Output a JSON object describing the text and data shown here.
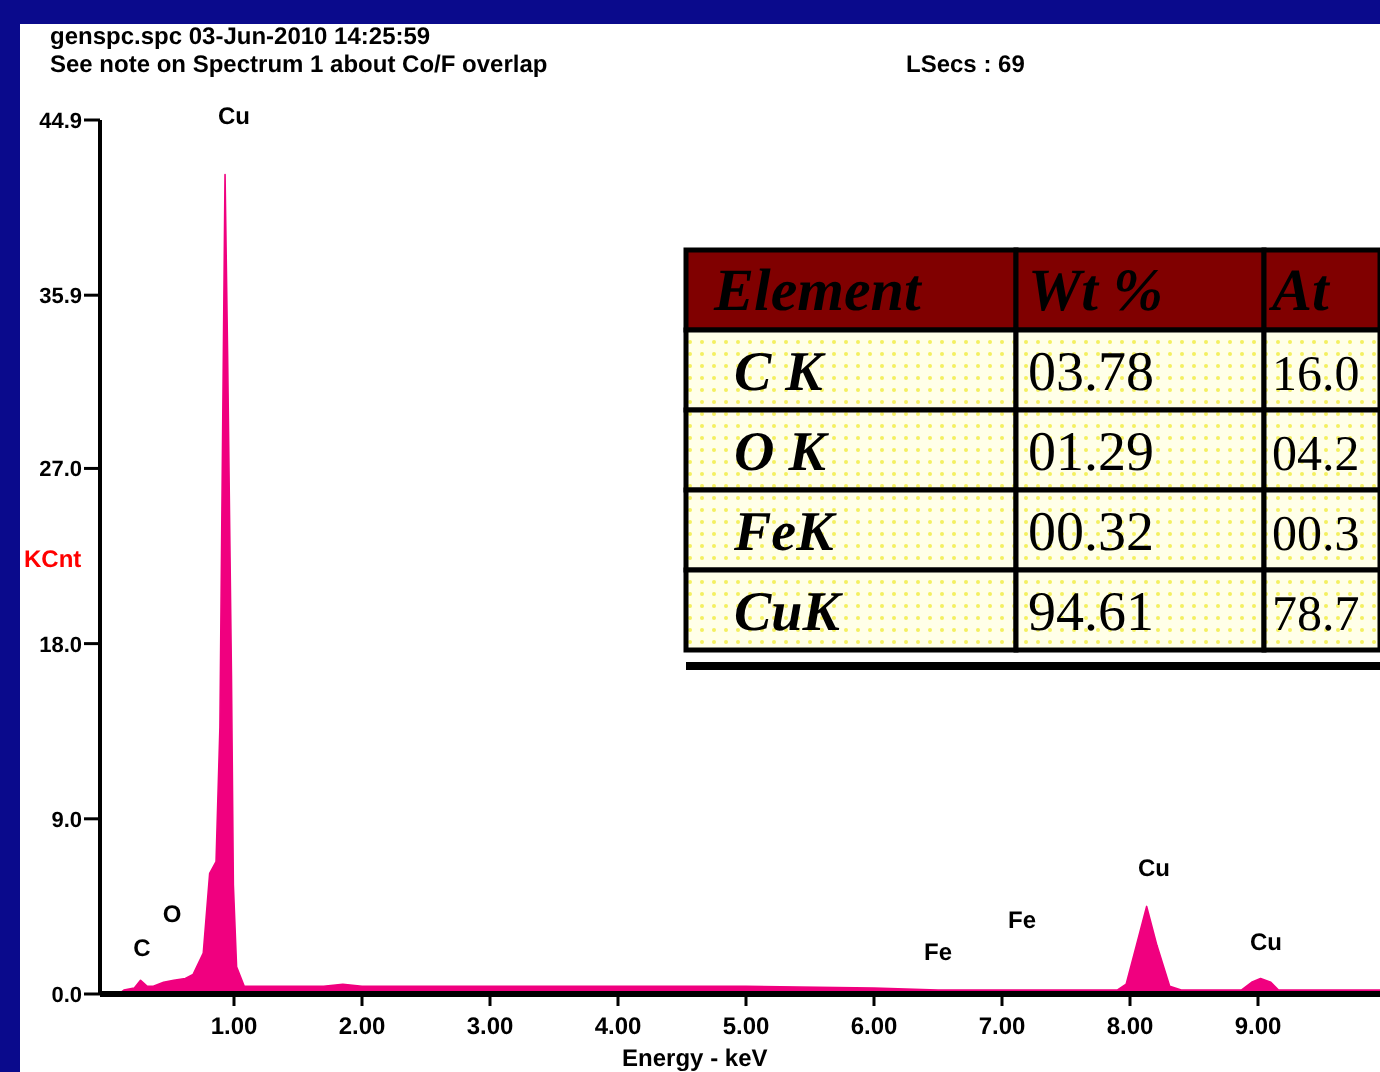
{
  "chart_data": {
    "type": "area",
    "title": "genspc.spc  03-Jun-2010 14:25:59",
    "xlabel": "Energy - keV",
    "ylabel": "KCnt",
    "annotations": [
      "See note on Spectrum 1 about Co/F overlap",
      "LSecs :  69",
      "Element",
      "Wt %",
      "At",
      "C K",
      "03.78",
      "16.0",
      "O K",
      "01.29",
      "04.2",
      "FeK",
      "00.32",
      "00.3",
      "CuK",
      "94.61",
      "78.7",
      "Cu",
      "C",
      "O",
      "Fe",
      "Fe",
      "Cu",
      "Cu"
    ],
    "series": [
      {
        "color": "#f0007f",
        "x": [
          0.1,
          0.14,
          0.22,
          0.27,
          0.32,
          0.37,
          0.45,
          0.53,
          0.62,
          0.68,
          0.76,
          0.81,
          0.86,
          0.89,
          0.93,
          0.95,
          0.98,
          0.995,
          1.02,
          1.08,
          1.3,
          1.7,
          1.85,
          2.0,
          2.5,
          3.0,
          4.0,
          5.0,
          6.0,
          6.5,
          7.0,
          7.9,
          7.97,
          8.05,
          8.13,
          8.21,
          8.31,
          8.4,
          8.87,
          8.95,
          9.02,
          9.1,
          9.16,
          9.3,
          9.95
        ],
        "values": [
          0,
          0.2,
          0.3,
          0.7,
          0.4,
          0.4,
          0.6,
          0.7,
          0.8,
          1.0,
          2.1,
          6.2,
          6.8,
          13.7,
          42.1,
          32.8,
          16.4,
          5.6,
          1.4,
          0.4,
          0.4,
          0.4,
          0.5,
          0.4,
          0.4,
          0.4,
          0.4,
          0.4,
          0.3,
          0.2,
          0.2,
          0.2,
          0.5,
          2.5,
          4.5,
          2.5,
          0.4,
          0.2,
          0.2,
          0.6,
          0.8,
          0.6,
          0.2,
          0.2,
          0.2
        ]
      }
    ],
    "xlim": [
      0,
      10
    ],
    "xticks": [
      {
        "value": 1,
        "label": "1.00"
      },
      {
        "value": 2,
        "label": "2.00"
      },
      {
        "value": 3,
        "label": "3.00"
      },
      {
        "value": 4,
        "label": "4.00"
      },
      {
        "value": 5,
        "label": "5.00"
      },
      {
        "value": 6,
        "label": "6.00"
      },
      {
        "value": 7,
        "label": "7.00"
      },
      {
        "value": 8,
        "label": "8.00"
      },
      {
        "value": 9,
        "label": "9.00"
      }
    ],
    "ylim": [
      0,
      44.9
    ],
    "yticks": [
      {
        "value": 0,
        "label": "0.0"
      },
      {
        "value": 9,
        "label": "9.0"
      },
      {
        "value": 18,
        "label": "18.0"
      },
      {
        "value": 27,
        "label": "27.0"
      },
      {
        "value": 35.9,
        "label": "35.9"
      },
      {
        "value": 44.9,
        "label": "44.9"
      }
    ]
  }
}
